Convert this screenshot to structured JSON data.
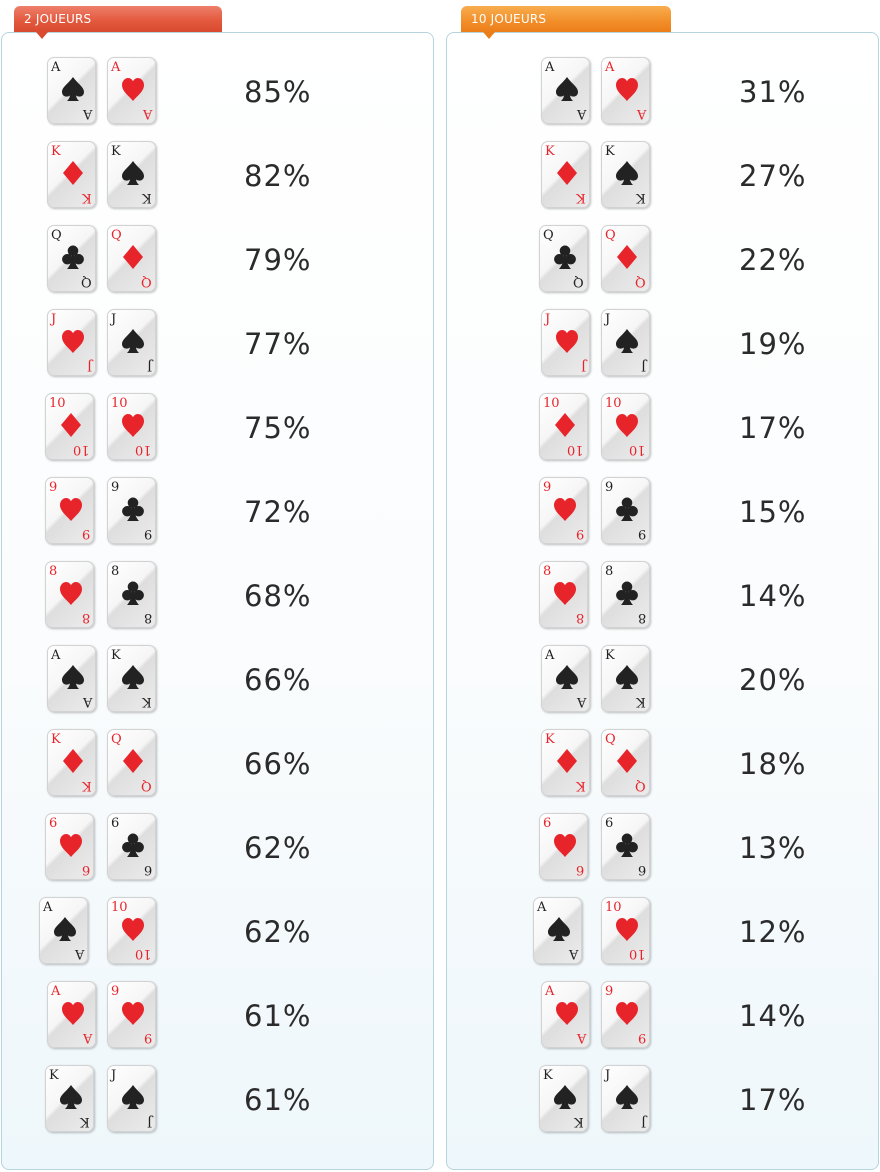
{
  "panels": [
    {
      "tab_label": "2 JOUEURS",
      "rows": [
        {
          "cards": [
            {
              "rank": "A",
              "suit": "spade"
            },
            {
              "rank": "A",
              "suit": "heart"
            }
          ],
          "percent": "85%"
        },
        {
          "cards": [
            {
              "rank": "K",
              "suit": "diamond"
            },
            {
              "rank": "K",
              "suit": "spade"
            }
          ],
          "percent": "82%"
        },
        {
          "cards": [
            {
              "rank": "Q",
              "suit": "club"
            },
            {
              "rank": "Q",
              "suit": "diamond"
            }
          ],
          "percent": "79%"
        },
        {
          "cards": [
            {
              "rank": "J",
              "suit": "heart"
            },
            {
              "rank": "J",
              "suit": "spade"
            }
          ],
          "percent": "77%"
        },
        {
          "cards": [
            {
              "rank": "10",
              "suit": "diamond"
            },
            {
              "rank": "10",
              "suit": "heart"
            }
          ],
          "percent": "75%"
        },
        {
          "cards": [
            {
              "rank": "9",
              "suit": "heart"
            },
            {
              "rank": "9",
              "suit": "club"
            }
          ],
          "percent": "72%"
        },
        {
          "cards": [
            {
              "rank": "8",
              "suit": "heart"
            },
            {
              "rank": "8",
              "suit": "club"
            }
          ],
          "percent": "68%"
        },
        {
          "cards": [
            {
              "rank": "A",
              "suit": "spade"
            },
            {
              "rank": "K",
              "suit": "spade"
            }
          ],
          "percent": "66%"
        },
        {
          "cards": [
            {
              "rank": "K",
              "suit": "diamond"
            },
            {
              "rank": "Q",
              "suit": "diamond"
            }
          ],
          "percent": "66%"
        },
        {
          "cards": [
            {
              "rank": "6",
              "suit": "heart"
            },
            {
              "rank": "6",
              "suit": "club"
            }
          ],
          "percent": "62%"
        },
        {
          "cards": [
            {
              "rank": "A",
              "suit": "spade"
            },
            {
              "rank": "10",
              "suit": "heart"
            }
          ],
          "percent": "62%"
        },
        {
          "cards": [
            {
              "rank": "A",
              "suit": "heart"
            },
            {
              "rank": "9",
              "suit": "heart"
            }
          ],
          "percent": "61%"
        },
        {
          "cards": [
            {
              "rank": "K",
              "suit": "spade"
            },
            {
              "rank": "J",
              "suit": "spade"
            }
          ],
          "percent": "61%"
        }
      ]
    },
    {
      "tab_label": "10 JOUEURS",
      "rows": [
        {
          "cards": [
            {
              "rank": "A",
              "suit": "spade"
            },
            {
              "rank": "A",
              "suit": "heart"
            }
          ],
          "percent": "31%"
        },
        {
          "cards": [
            {
              "rank": "K",
              "suit": "diamond"
            },
            {
              "rank": "K",
              "suit": "spade"
            }
          ],
          "percent": "27%"
        },
        {
          "cards": [
            {
              "rank": "Q",
              "suit": "club"
            },
            {
              "rank": "Q",
              "suit": "diamond"
            }
          ],
          "percent": "22%"
        },
        {
          "cards": [
            {
              "rank": "J",
              "suit": "heart"
            },
            {
              "rank": "J",
              "suit": "spade"
            }
          ],
          "percent": "19%"
        },
        {
          "cards": [
            {
              "rank": "10",
              "suit": "diamond"
            },
            {
              "rank": "10",
              "suit": "heart"
            }
          ],
          "percent": "17%"
        },
        {
          "cards": [
            {
              "rank": "9",
              "suit": "heart"
            },
            {
              "rank": "9",
              "suit": "club"
            }
          ],
          "percent": "15%"
        },
        {
          "cards": [
            {
              "rank": "8",
              "suit": "heart"
            },
            {
              "rank": "8",
              "suit": "club"
            }
          ],
          "percent": "14%"
        },
        {
          "cards": [
            {
              "rank": "A",
              "suit": "spade"
            },
            {
              "rank": "K",
              "suit": "spade"
            }
          ],
          "percent": "20%"
        },
        {
          "cards": [
            {
              "rank": "K",
              "suit": "diamond"
            },
            {
              "rank": "Q",
              "suit": "diamond"
            }
          ],
          "percent": "18%"
        },
        {
          "cards": [
            {
              "rank": "6",
              "suit": "heart"
            },
            {
              "rank": "6",
              "suit": "club"
            }
          ],
          "percent": "13%"
        },
        {
          "cards": [
            {
              "rank": "A",
              "suit": "spade"
            },
            {
              "rank": "10",
              "suit": "heart"
            }
          ],
          "percent": "12%"
        },
        {
          "cards": [
            {
              "rank": "A",
              "suit": "heart"
            },
            {
              "rank": "9",
              "suit": "heart"
            }
          ],
          "percent": "14%"
        },
        {
          "cards": [
            {
              "rank": "K",
              "suit": "spade"
            },
            {
              "rank": "J",
              "suit": "spade"
            }
          ],
          "percent": "17%"
        }
      ]
    }
  ],
  "colors": {
    "red_suit": "#e8242b",
    "black_suit": "#222222",
    "tab_left": "#e35a3f",
    "tab_right": "#f2902c",
    "panel_border": "#b6d4dd"
  }
}
